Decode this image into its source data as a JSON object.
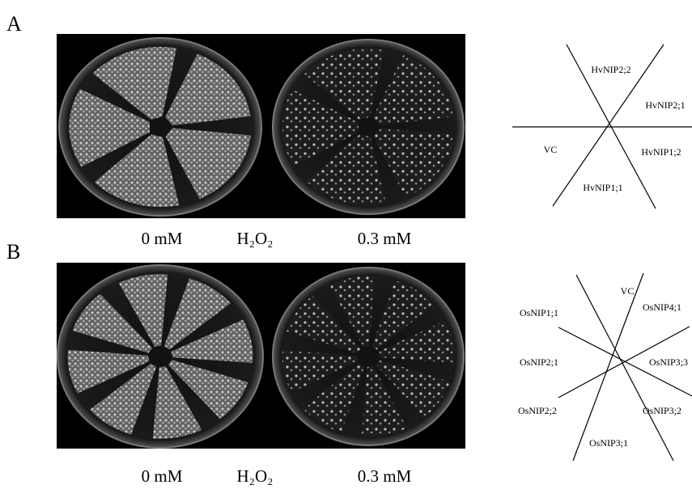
{
  "panels": [
    {
      "label": "A",
      "captions": [
        "0 mM",
        "H₂O₂",
        "0.3 mM"
      ],
      "diagram_labels": [
        "HvNIP2;2",
        "HvNIP2;1",
        "VC",
        "HvNIP1;2",
        "HvNIP1;1"
      ]
    },
    {
      "label": "B",
      "captions": [
        "0 mM",
        "H₂O₂",
        "0.3 mM"
      ],
      "diagram_labels": [
        "VC",
        "OsNIP4;1",
        "OsNIP1;1",
        "OsNIP3;3",
        "OsNIP2;1",
        "OsNIP2;2",
        "OsNIP3;2",
        "OsNIP3;1"
      ]
    }
  ]
}
